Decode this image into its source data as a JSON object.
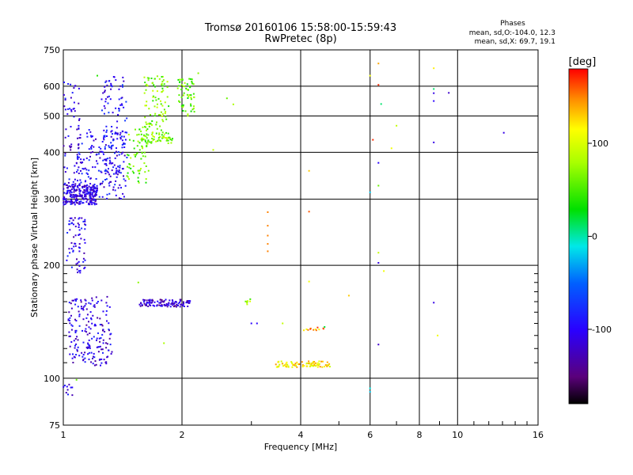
{
  "chart_data": {
    "type": "scatter",
    "title": "Tromsø 20160106 15:58:00-15:59:43",
    "subtitle": "RwPretec (8p)",
    "xlabel": "Frequency [MHz]",
    "ylabel": "Stationary phase Virtual Height [km]",
    "x_scale": "log2",
    "y_scale": "log",
    "xlim": [
      1,
      16
    ],
    "ylim": [
      75,
      750
    ],
    "x_ticks": [
      "1",
      "2",
      "4",
      "6",
      "8",
      "10",
      "16"
    ],
    "y_ticks": [
      "75",
      "100",
      "200",
      "300",
      "400",
      "500",
      "600",
      "750"
    ],
    "grid": true,
    "stats": {
      "heading": "Phases",
      "line_o": "mean, sd,O:-104.0, 12.3",
      "line_x": "mean, sd,X:  69.7, 19.1"
    },
    "colorbar": {
      "label": "[deg]",
      "range": [
        -180,
        180
      ],
      "ticks": [
        "100",
        "0",
        "-100"
      ],
      "tick_values": [
        100,
        0,
        -100
      ]
    },
    "clusters": [
      {
        "x0": 1.0,
        "x1": 1.22,
        "y0": 290,
        "y1": 330,
        "phase": -110,
        "n": 240
      },
      {
        "x0": 1.08,
        "x1": 1.45,
        "y0": 300,
        "y1": 460,
        "phase": -100,
        "n": 180
      },
      {
        "x0": 1.25,
        "x1": 1.45,
        "y0": 350,
        "y1": 640,
        "phase": -95,
        "n": 110
      },
      {
        "x0": 1.0,
        "x1": 1.1,
        "y0": 330,
        "y1": 620,
        "phase": -105,
        "n": 60
      },
      {
        "x0": 1.45,
        "x1": 1.65,
        "y0": 330,
        "y1": 470,
        "phase": 60,
        "n": 70
      },
      {
        "x0": 1.6,
        "x1": 1.85,
        "y0": 430,
        "y1": 640,
        "phase": 65,
        "n": 110
      },
      {
        "x0": 1.95,
        "x1": 2.15,
        "y0": 500,
        "y1": 630,
        "phase": 55,
        "n": 60
      },
      {
        "x0": 1.55,
        "x1": 1.9,
        "y0": 420,
        "y1": 440,
        "phase": 70,
        "n": 35
      },
      {
        "x0": 1.02,
        "x1": 1.14,
        "y0": 190,
        "y1": 270,
        "phase": -105,
        "n": 70
      },
      {
        "x0": 1.03,
        "x1": 1.33,
        "y0": 108,
        "y1": 165,
        "phase": -110,
        "n": 190
      },
      {
        "x0": 1.55,
        "x1": 2.1,
        "y0": 155,
        "y1": 162,
        "phase": -120,
        "n": 110
      },
      {
        "x0": 3.45,
        "x1": 4.75,
        "y0": 107,
        "y1": 111,
        "phase": 120,
        "n": 90
      },
      {
        "x0": 2.9,
        "x1": 3.0,
        "y0": 155,
        "y1": 163,
        "phase": 75,
        "n": 8
      },
      {
        "x0": 4.0,
        "x1": 4.6,
        "y0": 134,
        "y1": 137,
        "phase": 140,
        "n": 12
      },
      {
        "x0": 1.0,
        "x1": 1.06,
        "y0": 90,
        "y1": 97,
        "phase": -110,
        "n": 10
      }
    ],
    "points": [
      {
        "x": 3.3,
        "y": 277,
        "phase": 150
      },
      {
        "x": 3.3,
        "y": 255,
        "phase": 150
      },
      {
        "x": 3.3,
        "y": 240,
        "phase": 150
      },
      {
        "x": 3.3,
        "y": 228,
        "phase": 150
      },
      {
        "x": 3.3,
        "y": 218,
        "phase": 150
      },
      {
        "x": 4.2,
        "y": 278,
        "phase": 160
      },
      {
        "x": 4.2,
        "y": 357,
        "phase": 130
      },
      {
        "x": 4.2,
        "y": 181,
        "phase": 110
      },
      {
        "x": 5.3,
        "y": 166,
        "phase": 130
      },
      {
        "x": 6.0,
        "y": 313,
        "phase": -20
      },
      {
        "x": 6.0,
        "y": 640,
        "phase": 110
      },
      {
        "x": 6.1,
        "y": 432,
        "phase": 170
      },
      {
        "x": 6.3,
        "y": 690,
        "phase": 140
      },
      {
        "x": 6.3,
        "y": 605,
        "phase": 170
      },
      {
        "x": 6.3,
        "y": 375,
        "phase": -100
      },
      {
        "x": 6.3,
        "y": 326,
        "phase": 60
      },
      {
        "x": 6.3,
        "y": 216,
        "phase": 90
      },
      {
        "x": 6.3,
        "y": 203,
        "phase": -110
      },
      {
        "x": 6.4,
        "y": 538,
        "phase": 10
      },
      {
        "x": 6.5,
        "y": 193,
        "phase": 110
      },
      {
        "x": 7.0,
        "y": 471,
        "phase": 90
      },
      {
        "x": 6.8,
        "y": 410,
        "phase": 110
      },
      {
        "x": 6.0,
        "y": 94,
        "phase": -10
      },
      {
        "x": 6.0,
        "y": 92,
        "phase": -20
      },
      {
        "x": 6.3,
        "y": 123,
        "phase": -120
      },
      {
        "x": 8.7,
        "y": 670,
        "phase": 120
      },
      {
        "x": 8.7,
        "y": 590,
        "phase": 10
      },
      {
        "x": 8.7,
        "y": 575,
        "phase": -110
      },
      {
        "x": 8.7,
        "y": 548,
        "phase": -100
      },
      {
        "x": 8.7,
        "y": 425,
        "phase": -110
      },
      {
        "x": 8.7,
        "y": 159,
        "phase": -110
      },
      {
        "x": 8.9,
        "y": 130,
        "phase": 110
      },
      {
        "x": 9.5,
        "y": 576,
        "phase": -120
      },
      {
        "x": 13.1,
        "y": 451,
        "phase": -110
      },
      {
        "x": 3.0,
        "y": 140,
        "phase": -100
      },
      {
        "x": 3.1,
        "y": 140,
        "phase": -100
      },
      {
        "x": 3.6,
        "y": 140,
        "phase": 90
      },
      {
        "x": 4.6,
        "y": 137,
        "phase": 20
      },
      {
        "x": 1.55,
        "y": 180,
        "phase": 70
      },
      {
        "x": 2.7,
        "y": 537,
        "phase": 80
      },
      {
        "x": 2.6,
        "y": 557,
        "phase": 60
      },
      {
        "x": 2.2,
        "y": 650,
        "phase": 70
      },
      {
        "x": 2.4,
        "y": 406,
        "phase": 90
      },
      {
        "x": 1.8,
        "y": 124,
        "phase": 80
      },
      {
        "x": 1.08,
        "y": 99,
        "phase": 60
      },
      {
        "x": 1.22,
        "y": 640,
        "phase": 40
      }
    ]
  }
}
